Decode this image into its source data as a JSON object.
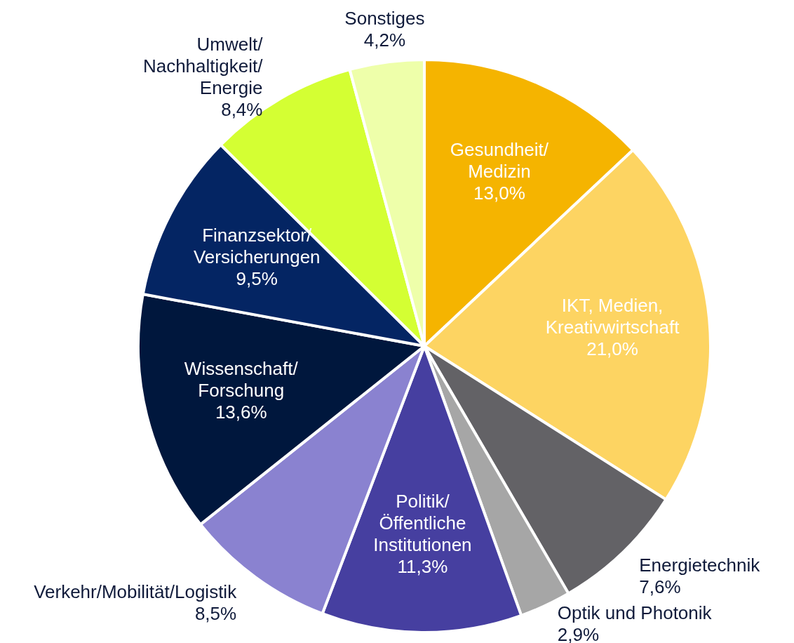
{
  "chart_data": {
    "type": "pie",
    "categories": [
      "Gesundheit/\nMedizin",
      "IKT, Medien,\nKreativwirtschaft",
      "Energietechnik",
      "Optik und Photonik",
      "Politik/\nÖffentliche\nInstitutionen",
      "Verkehr/Mobilität/Logistik",
      "Wissenschaft/\nForschung",
      "Finanzsektor/\nVersicherungen",
      "Umwelt/\nNachhaltigkeit/\nEnergie",
      "Sonstiges"
    ],
    "values": [
      13.0,
      21.0,
      7.6,
      2.9,
      11.3,
      8.5,
      13.6,
      9.5,
      8.4,
      4.2
    ],
    "value_labels": [
      "13,0%",
      "21,0%",
      "7,6%",
      "2,9%",
      "11,3%",
      "8,5%",
      "13,6%",
      "9,5%",
      "8,4%",
      "4,2%"
    ],
    "colors": [
      "#f5b400",
      "#fdd462",
      "#636266",
      "#a6a6a6",
      "#463fa0",
      "#8a82d0",
      "#00173d",
      "#042563",
      "#d4ff33",
      "#eeffaa"
    ]
  }
}
